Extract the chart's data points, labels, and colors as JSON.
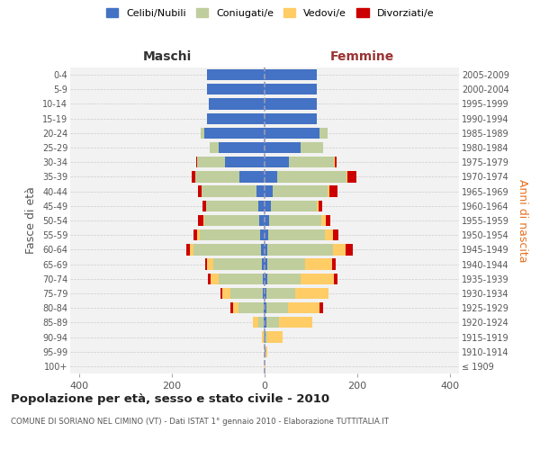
{
  "age_groups": [
    "100+",
    "95-99",
    "90-94",
    "85-89",
    "80-84",
    "75-79",
    "70-74",
    "65-69",
    "60-64",
    "55-59",
    "50-54",
    "45-49",
    "40-44",
    "35-39",
    "30-34",
    "25-29",
    "20-24",
    "15-19",
    "10-14",
    "5-9",
    "0-4"
  ],
  "birth_years": [
    "≤ 1909",
    "1910-1914",
    "1915-1919",
    "1920-1924",
    "1925-1929",
    "1930-1934",
    "1935-1939",
    "1940-1944",
    "1945-1949",
    "1950-1954",
    "1955-1959",
    "1960-1964",
    "1965-1969",
    "1970-1974",
    "1975-1979",
    "1980-1984",
    "1985-1989",
    "1990-1994",
    "1995-1999",
    "2000-2004",
    "2005-2009"
  ],
  "male_celibi": [
    0,
    0,
    0,
    1,
    2,
    3,
    4,
    5,
    8,
    10,
    12,
    14,
    18,
    55,
    85,
    100,
    130,
    125,
    120,
    125,
    125
  ],
  "male_coniugati": [
    0,
    0,
    2,
    12,
    55,
    70,
    95,
    105,
    145,
    130,
    118,
    112,
    118,
    95,
    60,
    18,
    8,
    0,
    0,
    0,
    0
  ],
  "male_vedovi": [
    0,
    0,
    3,
    12,
    12,
    18,
    18,
    14,
    8,
    5,
    3,
    0,
    0,
    0,
    0,
    0,
    0,
    0,
    0,
    0,
    0
  ],
  "male_divorziati": [
    0,
    0,
    0,
    0,
    5,
    4,
    6,
    5,
    8,
    8,
    10,
    8,
    8,
    8,
    2,
    0,
    0,
    0,
    0,
    0,
    0
  ],
  "female_nubili": [
    0,
    1,
    2,
    4,
    3,
    4,
    5,
    5,
    5,
    8,
    10,
    14,
    18,
    28,
    52,
    78,
    118,
    112,
    112,
    112,
    112
  ],
  "female_coniugate": [
    0,
    0,
    4,
    28,
    48,
    62,
    72,
    82,
    142,
    122,
    112,
    98,
    118,
    148,
    98,
    48,
    18,
    0,
    0,
    0,
    0
  ],
  "female_vedove": [
    2,
    4,
    32,
    72,
    68,
    72,
    72,
    58,
    28,
    18,
    10,
    4,
    4,
    2,
    2,
    0,
    0,
    0,
    0,
    0,
    0
  ],
  "female_divorziate": [
    0,
    0,
    0,
    0,
    8,
    0,
    8,
    8,
    15,
    12,
    10,
    8,
    18,
    20,
    4,
    0,
    0,
    0,
    0,
    0,
    0
  ],
  "colors_celibi": "#4472C4",
  "colors_coniugati": "#BFCE9C",
  "colors_vedovi": "#FFCC66",
  "colors_divorziati": "#CC0000",
  "title": "Popolazione per età, sesso e stato civile - 2010",
  "subtitle": "COMUNE DI SORIANO NEL CIMINO (VT) - Dati ISTAT 1° gennaio 2010 - Elaborazione TUTTITALIA.IT",
  "label_maschi": "Maschi",
  "label_femmine": "Femmine",
  "ylabel_left": "Fasce di età",
  "ylabel_right": "Anni di nascita",
  "xlim": 420,
  "xticks": [
    -400,
    -200,
    0,
    200,
    400
  ],
  "legend_labels": [
    "Celibi/Nubili",
    "Coniugati/e",
    "Vedovi/e",
    "Divorziati/e"
  ],
  "bg_color": "#f2f2f2",
  "grid_color": "#cccccc",
  "center_line_color": "#9999bb",
  "femmine_color": "#993333",
  "maschi_color": "#333333"
}
